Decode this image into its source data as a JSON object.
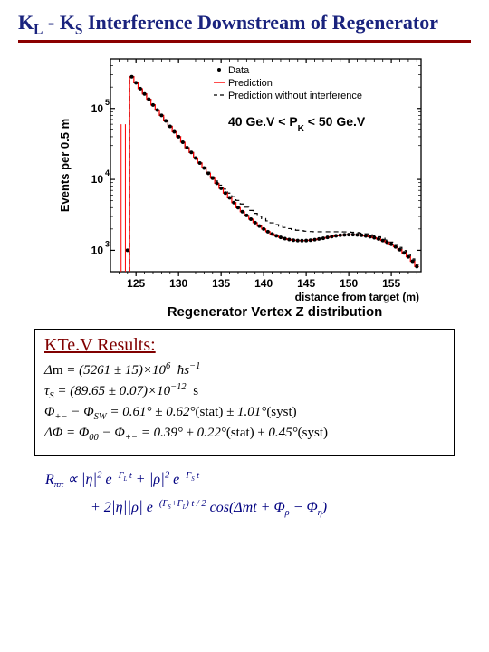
{
  "title_parts": {
    "KL": "K",
    "Lsub": "L",
    "dash": " - ",
    "KS": "K",
    "Ssub": "S",
    "rest": " Interference Downstream of Regenerator"
  },
  "chart": {
    "type": "line+scatter",
    "ylabel": "Events per 0.5 m",
    "ylabel_fontsize": 13,
    "ylabel_color": "#000000",
    "xlabel": "distance from target (m)",
    "xlabel_fontsize": 12,
    "subtitle": "Regenerator Vertex Z distribution",
    "subtitle_fontsize": 15,
    "background_color": "#ffffff",
    "axis_color": "#000000",
    "xlim": [
      122,
      158.5
    ],
    "ylim_log": [
      500,
      500000
    ],
    "xticks": [
      125,
      130,
      135,
      140,
      145,
      150,
      155
    ],
    "yticks": [
      {
        "val": 1000,
        "mant": "10",
        "exp": "3"
      },
      {
        "val": 10000,
        "mant": "10",
        "exp": "4"
      },
      {
        "val": 100000,
        "mant": "10",
        "exp": "5"
      }
    ],
    "legend": {
      "items": [
        {
          "symbol": "dot",
          "label": "Data",
          "color": "#000000"
        },
        {
          "symbol": "line",
          "label": "Prediction",
          "color": "#ff0000"
        },
        {
          "symbol": "dash",
          "label": "Prediction without interference",
          "color": "#000000"
        }
      ],
      "fontsize": 11
    },
    "range_text": {
      "left": "40 Ge.V < P",
      "sub": "K",
      "right": " < 50 Ge.V"
    },
    "range_fontsize": 14,
    "data_x": [
      123.0,
      123.5,
      124.0,
      124.5,
      125.0,
      125.5,
      126.0,
      126.5,
      127.0,
      127.5,
      128.0,
      128.5,
      129.0,
      129.5,
      130.0,
      130.5,
      131.0,
      131.5,
      132.0,
      132.5,
      133.0,
      133.5,
      134.0,
      134.5,
      135.0,
      135.5,
      136.0,
      136.5,
      137.0,
      137.5,
      138.0,
      138.5,
      139.0,
      139.5,
      140.0,
      140.5,
      141.0,
      141.5,
      142.0,
      142.5,
      143.0,
      143.5,
      144.0,
      144.5,
      145.0,
      145.5,
      146.0,
      146.5,
      147.0,
      147.5,
      148.0,
      148.5,
      149.0,
      149.5,
      150.0,
      150.5,
      151.0,
      151.5,
      152.0,
      152.5,
      153.0,
      153.5,
      154.0,
      154.5,
      155.0,
      155.5,
      156.0,
      156.5,
      157.0,
      157.5,
      158.0
    ],
    "data_y": [
      null,
      null,
      1000,
      280000,
      230000,
      190000,
      160000,
      135000,
      112000,
      95000,
      80000,
      67000,
      56000,
      47000,
      40000,
      33500,
      28000,
      24000,
      20000,
      17000,
      14500,
      12200,
      10400,
      8800,
      7500,
      6400,
      5500,
      4700,
      4000,
      3500,
      3100,
      2750,
      2450,
      2200,
      2000,
      1830,
      1700,
      1600,
      1520,
      1460,
      1420,
      1390,
      1375,
      1370,
      1375,
      1390,
      1415,
      1445,
      1480,
      1520,
      1560,
      1600,
      1630,
      1650,
      1660,
      1660,
      1650,
      1630,
      1595,
      1555,
      1505,
      1445,
      1375,
      1300,
      1215,
      1120,
      1020,
      920,
      810,
      700,
      590
    ],
    "pred_y": [
      null,
      null,
      null,
      280000,
      230000,
      190000,
      160000,
      135000,
      112000,
      95000,
      80000,
      67000,
      56000,
      47000,
      40000,
      33500,
      28000,
      24000,
      20000,
      17000,
      14500,
      12200,
      10400,
      8800,
      7500,
      6400,
      5500,
      4700,
      4000,
      3500,
      3100,
      2750,
      2450,
      2200,
      2000,
      1830,
      1700,
      1600,
      1520,
      1460,
      1420,
      1390,
      1375,
      1370,
      1375,
      1390,
      1415,
      1445,
      1480,
      1520,
      1560,
      1600,
      1630,
      1650,
      1660,
      1660,
      1650,
      1630,
      1595,
      1555,
      1505,
      1445,
      1375,
      1300,
      1215,
      1120,
      1020,
      920,
      810,
      700,
      590
    ],
    "noninterf_y": [
      null,
      null,
      null,
      280000,
      230000,
      190000,
      160000,
      135000,
      112000,
      95000,
      80000,
      67000,
      56000,
      47000,
      40000,
      33500,
      28000,
      24000,
      20000,
      17000,
      14700,
      12600,
      10900,
      9500,
      8300,
      7300,
      6400,
      5700,
      5050,
      4500,
      4050,
      3650,
      3320,
      3040,
      2800,
      2600,
      2440,
      2300,
      2190,
      2100,
      2025,
      1965,
      1920,
      1885,
      1860,
      1840,
      1830,
      1825,
      1825,
      1825,
      1825,
      1825,
      1825,
      1820,
      1810,
      1795,
      1775,
      1745,
      1710,
      1665,
      1610,
      1550,
      1480,
      1395,
      1305,
      1205,
      1100,
      990,
      875,
      755,
      635
    ],
    "data_color": "#000000",
    "pred_color": "#ff0000",
    "noninterf_color": "#000000",
    "marker_size": 2.0,
    "line_width": 1.2
  },
  "results": {
    "title": "KTe.V Results:",
    "eqns": [
      "Δm = (5261 ± 15) × 10⁶  ħs⁻¹",
      "τ_S = (89.65 ± 0.07) × 10⁻¹²  s",
      "Φ₊₋ − Φ_SW = 0.61° ± 0.62°(stat) ± 1.01°(syst)",
      "ΔΦ = Φ₀₀ − Φ₊₋ = 0.39° ± 0.22°(stat) ± 0.45°(syst)"
    ]
  },
  "formula": {
    "line1_a": "R",
    "line1_a_sub": "ππ",
    "line1_b": " ∝ ",
    "line1_c": "|η|",
    "line1_c_sup": "2",
    "line1_d": " e",
    "line1_d_sup": "−Γ_L t",
    "line1_e": " + |ρ|",
    "line1_e_sup": "2",
    "line1_f": " e",
    "line1_f_sup": "−Γ_S t",
    "line2_a": "+ 2|η||ρ| e",
    "line2_a_sup": "−(Γ_S + Γ_L) t / 2",
    "line2_b": " cos(Δmt + Φ",
    "line2_b_sub": "ρ",
    "line2_c": " − Φ",
    "line2_c_sub": "η",
    "line2_d": ")"
  }
}
